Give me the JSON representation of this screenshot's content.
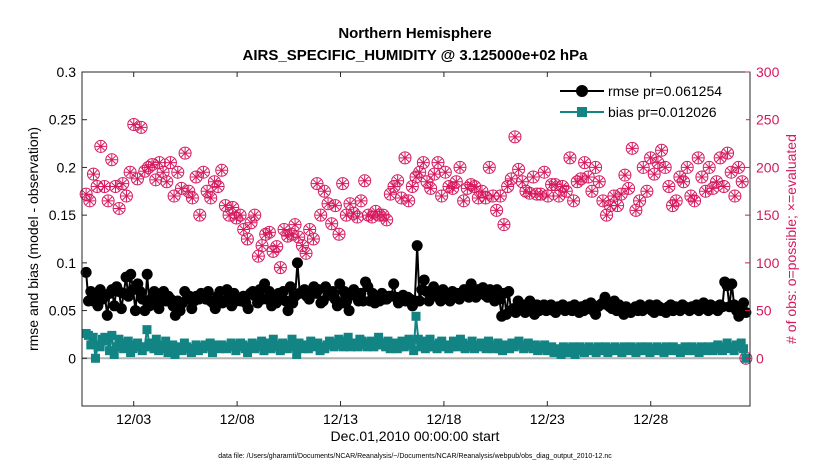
{
  "chart_data": {
    "type": "line",
    "title": "Northern Hemisphere",
    "subtitle": "AIRS_SPECIFIC_HUMIDITY @ 3.125000e+02 hPa",
    "xlabel": "Dec.01,2010 00:00:00 start",
    "ylabel": "rmse and bias (model - observation)",
    "ylabel_right": "# of obs: o=possible; ×=evaluated",
    "footnote": "data file: /Users/gharamti/Documents/NCAR/Reanalysis/~/Documents/NCAR/Reanalysis/webpub/obs_diag_output_2010-12.nc",
    "xlim": [
      0.5,
      32.8
    ],
    "ylim": [
      -0.05,
      0.3
    ],
    "ylim_right": [
      -50,
      300
    ],
    "x_tick_values": [
      3,
      8,
      13,
      18,
      23,
      28
    ],
    "x_tick_labels": [
      "12/03",
      "12/08",
      "12/13",
      "12/18",
      "12/23",
      "12/28"
    ],
    "y_tick_values": [
      0,
      0.05,
      0.1,
      0.15,
      0.2,
      0.25,
      0.3
    ],
    "y_tick_labels": [
      "0",
      "0.05",
      "0.1",
      "0.15",
      "0.2",
      "0.25",
      "0.3"
    ],
    "y_right_tick_values": [
      0,
      50,
      100,
      150,
      200,
      250,
      300
    ],
    "y_right_tick_labels": [
      "0",
      "50",
      "100",
      "150",
      "200",
      "250",
      "300"
    ],
    "legend_position": "top-right",
    "colors": {
      "rmse": "#000000",
      "bias": "#128484",
      "obs": "#d6195e",
      "zero_line": "#b3b3b3"
    },
    "series": [
      {
        "name": "rmse pr=0.061254",
        "marker": "circle",
        "values": [
          0.09,
          0.06,
          0.07,
          0.06,
          0.065,
          0.055,
          0.072,
          0.062,
          0.065,
          0.045,
          0.068,
          0.072,
          0.055,
          0.075,
          0.07,
          0.052,
          0.068,
          0.085,
          0.065,
          0.088,
          0.072,
          0.05,
          0.078,
          0.07,
          0.062,
          0.05,
          0.088,
          0.055,
          0.063,
          0.07,
          0.06,
          0.052,
          0.068,
          0.07,
          0.06,
          0.065,
          0.062,
          0.055,
          0.045,
          0.06,
          0.05,
          0.058,
          0.07,
          0.062,
          0.065,
          0.052,
          0.06,
          0.065,
          0.062,
          0.068,
          0.066,
          0.062,
          0.07,
          0.06,
          0.058,
          0.052,
          0.065,
          0.07,
          0.058,
          0.06,
          0.072,
          0.065,
          0.055,
          0.068,
          0.06,
          0.063,
          0.06,
          0.065,
          0.058,
          0.052,
          0.068,
          0.07,
          0.065,
          0.058,
          0.072,
          0.062,
          0.078,
          0.062,
          0.07,
          0.055,
          0.065,
          0.058,
          0.068,
          0.062,
          0.07,
          0.06,
          0.05,
          0.075,
          0.058,
          0.065,
          0.1,
          0.068,
          0.07,
          0.072,
          0.065,
          0.062,
          0.07,
          0.075,
          0.068,
          0.072,
          0.058,
          0.06,
          0.075,
          0.066,
          0.068,
          0.07,
          0.062,
          0.055,
          0.078,
          0.058,
          0.07,
          0.06,
          0.05,
          0.068,
          0.072,
          0.065,
          0.06,
          0.068,
          0.06,
          0.08,
          0.075,
          0.06,
          0.068,
          0.058,
          0.063,
          0.06,
          0.068,
          0.062,
          0.062,
          0.065,
          0.065,
          0.078,
          0.064,
          0.058,
          0.064,
          0.066,
          0.06,
          0.064,
          0.062,
          0.055,
          0.06,
          0.118,
          0.06,
          0.072,
          0.082,
          0.07,
          0.06,
          0.07,
          0.075,
          0.066,
          0.064,
          0.06,
          0.072,
          0.066,
          0.064,
          0.06,
          0.07,
          0.064,
          0.068,
          0.062,
          0.066,
          0.072,
          0.068,
          0.064,
          0.078,
          0.07,
          0.064,
          0.072,
          0.068,
          0.074,
          0.066,
          0.064,
          0.072,
          0.07,
          0.06,
          0.072,
          0.062,
          0.044,
          0.068,
          0.046,
          0.07,
          0.05,
          0.052,
          0.048,
          0.06,
          0.052,
          0.056,
          0.048,
          0.054,
          0.06,
          0.052,
          0.046,
          0.056,
          0.05,
          0.054,
          0.056,
          0.05,
          0.052,
          0.056,
          0.05,
          0.048,
          0.054,
          0.052,
          0.056,
          0.05,
          0.052,
          0.054,
          0.05,
          0.056,
          0.052,
          0.048,
          0.054,
          0.05,
          0.056,
          0.052,
          0.058,
          0.05,
          0.046,
          0.054,
          0.056,
          0.058,
          0.064,
          0.056,
          0.054,
          0.052,
          0.06,
          0.05,
          0.056,
          0.052,
          0.046,
          0.054,
          0.05,
          0.048,
          0.052,
          0.054,
          0.05,
          0.056,
          0.05,
          0.052,
          0.054,
          0.056,
          0.05,
          0.048,
          0.056,
          0.054,
          0.05,
          0.052,
          0.048,
          0.054,
          0.056,
          0.05,
          0.054,
          0.052,
          0.05,
          0.056,
          0.054,
          0.052,
          0.05,
          0.054,
          0.052,
          0.056,
          0.05,
          0.052,
          0.058,
          0.054,
          0.05,
          0.056,
          0.052,
          0.054,
          0.05,
          0.056,
          0.054,
          0.08,
          0.076,
          0.054,
          0.078,
          0.056,
          0.05,
          0.044,
          0.05,
          0.058,
          0.048
        ]
      },
      {
        "name": "bias pr=0.012026",
        "marker": "square",
        "values": [
          0.026,
          0.024,
          0.014,
          0.022,
          0.0,
          0.014,
          0.012,
          0.02,
          0.022,
          0.018,
          0.008,
          0.024,
          0.004,
          0.012,
          0.02,
          0.016,
          0.01,
          0.014,
          0.018,
          0.006,
          0.01,
          0.014,
          0.016,
          0.012,
          0.008,
          0.012,
          0.03,
          0.016,
          0.012,
          0.01,
          0.02,
          0.008,
          0.014,
          0.01,
          0.018,
          0.006,
          0.012,
          0.014,
          0.004,
          0.01,
          0.012,
          0.008,
          0.016,
          0.012,
          0.01,
          0.006,
          0.01,
          0.014,
          0.008,
          0.012,
          0.01,
          0.014,
          0.012,
          0.016,
          0.006,
          0.012,
          0.014,
          0.01,
          0.014,
          0.012,
          0.01,
          0.012,
          0.016,
          0.014,
          0.008,
          0.012,
          0.016,
          0.014,
          0.01,
          0.006,
          0.012,
          0.016,
          0.01,
          0.012,
          0.014,
          0.018,
          0.008,
          0.014,
          0.016,
          0.01,
          0.02,
          0.014,
          0.012,
          0.008,
          0.016,
          0.012,
          0.01,
          0.014,
          0.02,
          0.012,
          0.004,
          0.016,
          0.012,
          0.01,
          0.014,
          0.01,
          0.018,
          0.012,
          0.014,
          0.016,
          0.008,
          0.012,
          0.01,
          0.014,
          0.018,
          0.016,
          0.012,
          0.014,
          0.02,
          0.016,
          0.012,
          0.018,
          0.022,
          0.012,
          0.014,
          0.016,
          0.012,
          0.02,
          0.018,
          0.014,
          0.012,
          0.016,
          0.018,
          0.012,
          0.014,
          0.022,
          0.016,
          0.014,
          0.012,
          0.018,
          0.01,
          0.014,
          0.016,
          0.01,
          0.012,
          0.018,
          0.012,
          0.014,
          0.02,
          0.016,
          0.008,
          0.044,
          0.02,
          0.012,
          0.018,
          0.01,
          0.012,
          0.02,
          0.014,
          0.012,
          0.01,
          0.016,
          0.018,
          0.012,
          0.014,
          0.01,
          0.012,
          0.018,
          0.014,
          0.012,
          0.02,
          0.016,
          0.01,
          0.014,
          0.012,
          0.018,
          0.01,
          0.014,
          0.012,
          0.016,
          0.012,
          0.01,
          0.018,
          0.014,
          0.01,
          0.012,
          0.016,
          0.01,
          0.008,
          0.014,
          0.012,
          0.01,
          0.016,
          0.012,
          0.014,
          0.018,
          0.014,
          0.01,
          0.012,
          0.016,
          0.012,
          0.01,
          0.014,
          0.008,
          0.012,
          0.01,
          0.014,
          0.008,
          0.01,
          0.012,
          0.006,
          0.01,
          0.008,
          0.004,
          0.012,
          0.01,
          0.006,
          0.008,
          0.012,
          0.004,
          0.01,
          0.012,
          0.008,
          0.006,
          0.01,
          0.012,
          0.008,
          0.01,
          0.006,
          0.012,
          0.008,
          0.01,
          0.012,
          0.006,
          0.008,
          0.01,
          0.012,
          0.008,
          0.01,
          0.006,
          0.012,
          0.01,
          0.008,
          0.012,
          0.01,
          0.006,
          0.008,
          0.012,
          0.01,
          0.008,
          0.012,
          0.006,
          0.01,
          0.008,
          0.012,
          0.01,
          0.008,
          0.006,
          0.012,
          0.01,
          0.008,
          0.012,
          0.01,
          0.008,
          0.006,
          0.01,
          0.012,
          0.008,
          0.01,
          0.012,
          0.008,
          0.01,
          0.006,
          0.012,
          0.01,
          0.008,
          0.012,
          0.01,
          0.008,
          0.012,
          0.014,
          0.01,
          0.008,
          0.012,
          0.016,
          0.01,
          0.012,
          0.008,
          0.014,
          0.012,
          0.016,
          0.01,
          0.0
        ]
      },
      {
        "name": "# of obs possible",
        "marker": "open-circle",
        "values": [
          172,
          165,
          193,
          180,
          222,
          180,
          165,
          208,
          180,
          157,
          183,
          170,
          195,
          245,
          188,
          242,
          196,
          200,
          203,
          187,
          205,
          195,
          185,
          205,
          170,
          195,
          178,
          215,
          175,
          168,
          190,
          150,
          195,
          175,
          168,
          185,
          180,
          197,
          160,
          150,
          158,
          147,
          150,
          135,
          125,
          142,
          150,
          107,
          118,
          130,
          132,
          112,
          117,
          95,
          135,
          128,
          130,
          140,
          127,
          118,
          110,
          135,
          125,
          183,
          150,
          175,
          162,
          141,
          160,
          130,
          183,
          150,
          162,
          152,
          148,
          165,
          186,
          150,
          148,
          154,
          150,
          150,
          145,
          172,
          180,
          186,
          168,
          210,
          165,
          180,
          190,
          195,
          205,
          185,
          178,
          193,
          205,
          170,
          195,
          180,
          178,
          185,
          200,
          165,
          178,
          182,
          180,
          168,
          175,
          168,
          200,
          170,
          155,
          170,
          140,
          180,
          188,
          232,
          198,
          185,
          175,
          173,
          190,
          172,
          172,
          195,
          170,
          182,
          182,
          170,
          180,
          175,
          210,
          165,
          185,
          188,
          205,
          190,
          175,
          200,
          185,
          165,
          150,
          160,
          170,
          160,
          172,
          192,
          178,
          220,
          155,
          165,
          200,
          175,
          210,
          193,
          205,
          218,
          200,
          180,
          160,
          165,
          190,
          185,
          200,
          170,
          165,
          210,
          190,
          175,
          200,
          178,
          185,
          210,
          180,
          215,
          195,
          170,
          200,
          185,
          0
        ]
      },
      {
        "name": "# of obs evaluated",
        "marker": "asterisk",
        "values": [
          172,
          165,
          193,
          180,
          222,
          180,
          165,
          208,
          180,
          157,
          183,
          170,
          195,
          245,
          188,
          242,
          196,
          200,
          203,
          187,
          205,
          195,
          185,
          205,
          170,
          195,
          178,
          215,
          175,
          168,
          190,
          150,
          195,
          175,
          168,
          185,
          180,
          197,
          160,
          150,
          158,
          147,
          150,
          135,
          125,
          142,
          150,
          107,
          118,
          130,
          132,
          112,
          117,
          95,
          135,
          128,
          130,
          140,
          127,
          118,
          110,
          135,
          125,
          183,
          150,
          175,
          162,
          141,
          160,
          130,
          183,
          150,
          162,
          152,
          148,
          165,
          186,
          150,
          148,
          154,
          150,
          150,
          145,
          172,
          180,
          186,
          168,
          210,
          165,
          180,
          190,
          195,
          205,
          185,
          178,
          193,
          205,
          170,
          195,
          180,
          178,
          185,
          200,
          165,
          178,
          182,
          180,
          168,
          175,
          168,
          200,
          170,
          155,
          170,
          140,
          180,
          188,
          232,
          198,
          185,
          175,
          173,
          190,
          172,
          172,
          195,
          170,
          182,
          182,
          170,
          180,
          175,
          210,
          165,
          185,
          188,
          205,
          190,
          175,
          200,
          185,
          165,
          150,
          160,
          170,
          160,
          172,
          192,
          178,
          220,
          155,
          165,
          200,
          175,
          210,
          193,
          205,
          218,
          200,
          180,
          160,
          165,
          190,
          185,
          200,
          170,
          165,
          210,
          190,
          175,
          200,
          178,
          185,
          210,
          180,
          215,
          195,
          170,
          200,
          185,
          0
        ]
      }
    ]
  }
}
